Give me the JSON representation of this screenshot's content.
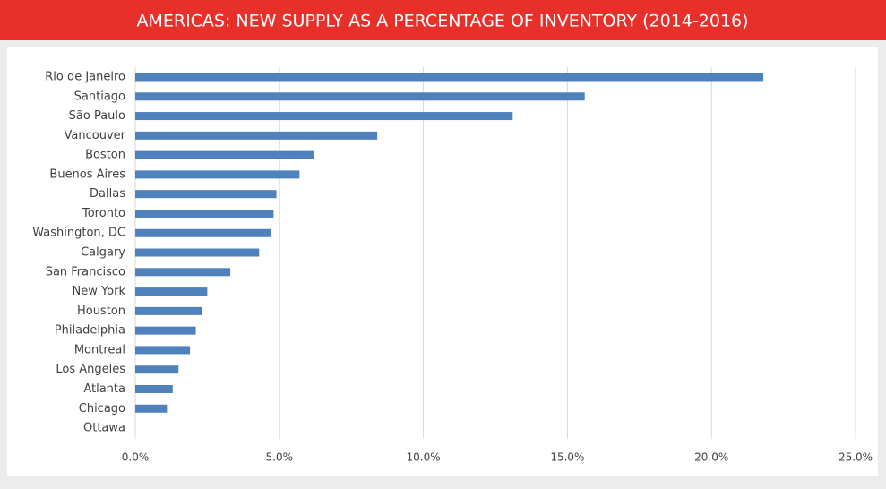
{
  "chart_data": {
    "type": "bar",
    "orientation": "horizontal",
    "title": "AMERICAS: NEW SUPPLY AS A PERCENTAGE OF INVENTORY (2014-2016)",
    "categories": [
      "Rio de Janeiro",
      "Santiago",
      "São Paulo",
      "Vancouver",
      "Boston",
      "Buenos Aires",
      "Dallas",
      "Toronto",
      "Washington, DC",
      "Calgary",
      "San Francisco",
      "New York",
      "Houston",
      "Philadelphia",
      "Montreal",
      "Los Angeles",
      "Atlanta",
      "Chicago",
      "Ottawa"
    ],
    "values": [
      21.8,
      15.6,
      13.1,
      8.4,
      6.2,
      5.7,
      4.9,
      4.8,
      4.7,
      4.3,
      3.3,
      2.5,
      2.3,
      2.1,
      1.9,
      1.5,
      1.3,
      1.1,
      0
    ],
    "color": "#4f81bd",
    "xlim": [
      0,
      25
    ],
    "xticks": [
      {
        "value": 0,
        "label": "0.0%"
      },
      {
        "value": 5,
        "label": "5.0%"
      },
      {
        "value": 10,
        "label": "10.0%"
      },
      {
        "value": 15,
        "label": "15.0%"
      },
      {
        "value": 20,
        "label": "20.0%"
      },
      {
        "value": 25,
        "label": "25.0%"
      }
    ],
    "grid": true
  }
}
